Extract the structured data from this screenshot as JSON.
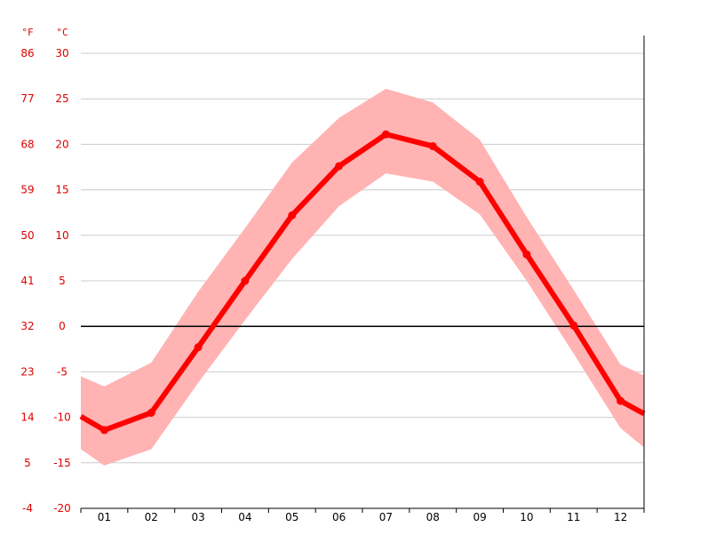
{
  "chart_data": {
    "type": "line",
    "categories": [
      "01",
      "02",
      "03",
      "04",
      "05",
      "06",
      "07",
      "08",
      "09",
      "10",
      "11",
      "12"
    ],
    "series": [
      {
        "values": [
          -11.4,
          -9.5,
          -2.3,
          5.0,
          12.2,
          17.6,
          21.1,
          19.8,
          15.9,
          7.9,
          0.1,
          -8.2
        ]
      }
    ],
    "band": {
      "min": [
        -15.3,
        -13.5,
        -6.2,
        0.7,
        7.4,
        13.2,
        16.8,
        15.9,
        12.3,
        5.0,
        -3.0,
        -11.2
      ],
      "max": [
        -6.6,
        -4.0,
        3.8,
        10.8,
        18.0,
        22.9,
        26.1,
        24.6,
        20.5,
        12.0,
        4.0,
        -4.2
      ]
    },
    "edge_values": {
      "mean_start": -9.9,
      "mean_end": -9.6,
      "min_start": -13.5,
      "min_end": -13.3,
      "max_start": -5.5,
      "max_end": -5.4
    },
    "ylim": [
      -20,
      30
    ],
    "y_ticks_c": [
      "30",
      "25",
      "20",
      "15",
      "10",
      "5",
      "0",
      "-5",
      "-10",
      "-15",
      "-20"
    ],
    "y_ticks_f": [
      "86",
      "77",
      "68",
      "59",
      "50",
      "41",
      "32",
      "23",
      "14",
      "5",
      "-4"
    ],
    "unit_f": "°F",
    "unit_c": "°C",
    "grid": true,
    "colors": {
      "line": "#ff0000",
      "band": "#ffb3b3",
      "labels": "#dd0000",
      "grid": "#cccccc",
      "zero": "#000000"
    }
  }
}
